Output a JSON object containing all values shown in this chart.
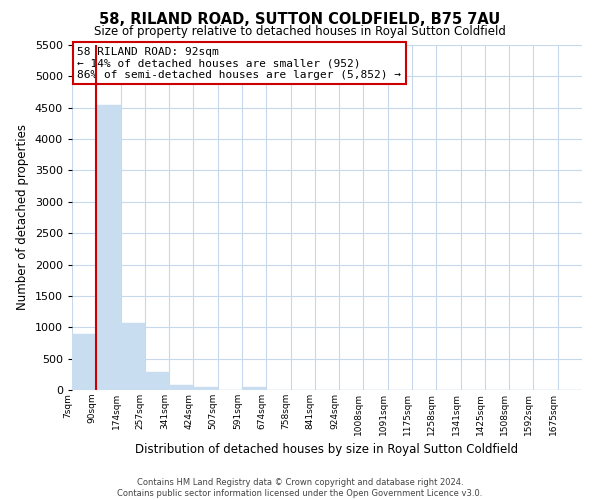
{
  "title": "58, RILAND ROAD, SUTTON COLDFIELD, B75 7AU",
  "subtitle": "Size of property relative to detached houses in Royal Sutton Coldfield",
  "xlabel": "Distribution of detached houses by size in Royal Sutton Coldfield",
  "ylabel": "Number of detached properties",
  "bar_labels": [
    "7sqm",
    "90sqm",
    "174sqm",
    "257sqm",
    "341sqm",
    "424sqm",
    "507sqm",
    "591sqm",
    "674sqm",
    "758sqm",
    "841sqm",
    "924sqm",
    "1008sqm",
    "1091sqm",
    "1175sqm",
    "1258sqm",
    "1341sqm",
    "1425sqm",
    "1508sqm",
    "1592sqm",
    "1675sqm"
  ],
  "bar_values": [
    900,
    4550,
    1070,
    290,
    80,
    40,
    0,
    40,
    0,
    0,
    0,
    0,
    0,
    0,
    0,
    0,
    0,
    0,
    0,
    0,
    0
  ],
  "bar_color": "#c8ddf0",
  "highlight_color": "#cc0000",
  "red_line_x": 1,
  "annotation_title": "58 RILAND ROAD: 92sqm",
  "annotation_line1": "← 14% of detached houses are smaller (952)",
  "annotation_line2": "86% of semi-detached houses are larger (5,852) →",
  "ylim": [
    0,
    5500
  ],
  "yticks": [
    0,
    500,
    1000,
    1500,
    2000,
    2500,
    3000,
    3500,
    4000,
    4500,
    5000,
    5500
  ],
  "footer_line1": "Contains HM Land Registry data © Crown copyright and database right 2024.",
  "footer_line2": "Contains public sector information licensed under the Open Government Licence v3.0.",
  "background_color": "#ffffff",
  "grid_color": "#c8d8ec"
}
